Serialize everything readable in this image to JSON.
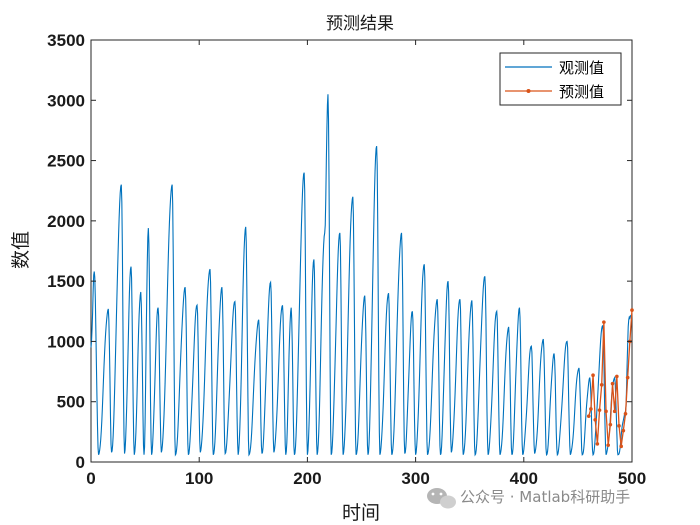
{
  "watermark": {
    "text": "公众号 · Matlab科研助手",
    "icon": "wechat-icon"
  },
  "chart_data": {
    "type": "line",
    "title": "预测结果",
    "xlabel": "时间",
    "ylabel": "数值",
    "xlim": [
      0,
      500
    ],
    "ylim": [
      0,
      3500
    ],
    "xticks": [
      0,
      100,
      200,
      300,
      400,
      500
    ],
    "yticks": [
      0,
      500,
      1000,
      1500,
      2000,
      2500,
      3000,
      3500
    ],
    "grid": false,
    "legend_position": "top-right",
    "colors": {
      "observed": "#0072BD",
      "predicted": "#D95319"
    },
    "series": [
      {
        "name": "观测值",
        "peaks": [
          [
            0,
            950
          ],
          [
            3,
            1580
          ],
          [
            7,
            60
          ],
          [
            16,
            1270
          ],
          [
            19,
            80
          ],
          [
            28,
            2300
          ],
          [
            31,
            70
          ],
          [
            37,
            1620
          ],
          [
            40,
            60
          ],
          [
            46,
            1410
          ],
          [
            49,
            60
          ],
          [
            53,
            1940
          ],
          [
            56,
            60
          ],
          [
            62,
            1280
          ],
          [
            65,
            80
          ],
          [
            75,
            2300
          ],
          [
            78,
            60
          ],
          [
            87,
            1450
          ],
          [
            90,
            60
          ],
          [
            98,
            1300
          ],
          [
            101,
            80
          ],
          [
            110,
            1600
          ],
          [
            113,
            60
          ],
          [
            121,
            1450
          ],
          [
            124,
            70
          ],
          [
            133,
            1330
          ],
          [
            136,
            60
          ],
          [
            143,
            1950
          ],
          [
            146,
            60
          ],
          [
            155,
            1180
          ],
          [
            158,
            70
          ],
          [
            166,
            1490
          ],
          [
            169,
            80
          ],
          [
            177,
            1300
          ],
          [
            180,
            60
          ],
          [
            185,
            1280
          ],
          [
            188,
            60
          ],
          [
            197,
            2400
          ],
          [
            200,
            60
          ],
          [
            206,
            1680
          ],
          [
            209,
            60
          ],
          [
            216,
            1900
          ],
          [
            219,
            3050
          ],
          [
            222,
            60
          ],
          [
            230,
            1900
          ],
          [
            233,
            60
          ],
          [
            242,
            2200
          ],
          [
            245,
            60
          ],
          [
            253,
            1380
          ],
          [
            256,
            60
          ],
          [
            264,
            2620
          ],
          [
            267,
            60
          ],
          [
            275,
            1400
          ],
          [
            278,
            60
          ],
          [
            287,
            1900
          ],
          [
            290,
            70
          ],
          [
            297,
            1250
          ],
          [
            300,
            60
          ],
          [
            308,
            1640
          ],
          [
            311,
            60
          ],
          [
            320,
            1350
          ],
          [
            323,
            60
          ],
          [
            330,
            1500
          ],
          [
            333,
            80
          ],
          [
            341,
            1350
          ],
          [
            344,
            60
          ],
          [
            352,
            1340
          ],
          [
            355,
            60
          ],
          [
            364,
            1540
          ],
          [
            367,
            60
          ],
          [
            375,
            1250
          ],
          [
            378,
            60
          ],
          [
            386,
            1120
          ],
          [
            389,
            60
          ],
          [
            396,
            1280
          ],
          [
            399,
            60
          ],
          [
            407,
            960
          ],
          [
            410,
            70
          ],
          [
            418,
            1020
          ],
          [
            421,
            60
          ],
          [
            428,
            900
          ],
          [
            431,
            60
          ],
          [
            440,
            1000
          ],
          [
            443,
            60
          ],
          [
            451,
            780
          ],
          [
            454,
            60
          ],
          [
            461,
            700
          ],
          [
            464,
            60
          ],
          [
            473,
            1130
          ],
          [
            476,
            60
          ],
          [
            484,
            700
          ],
          [
            487,
            60
          ],
          [
            494,
            420
          ],
          [
            497,
            1180
          ],
          [
            499,
            1220
          ]
        ]
      },
      {
        "name": "预测值",
        "x": [
          460,
          462,
          464,
          466,
          468,
          470,
          472,
          474,
          476,
          478,
          480,
          482,
          484,
          486,
          488,
          490,
          492,
          494,
          496,
          498,
          500
        ],
        "y": [
          380,
          440,
          720,
          350,
          150,
          430,
          640,
          1160,
          420,
          140,
          310,
          650,
          420,
          710,
          300,
          130,
          260,
          400,
          700,
          1000,
          1260
        ]
      }
    ]
  }
}
